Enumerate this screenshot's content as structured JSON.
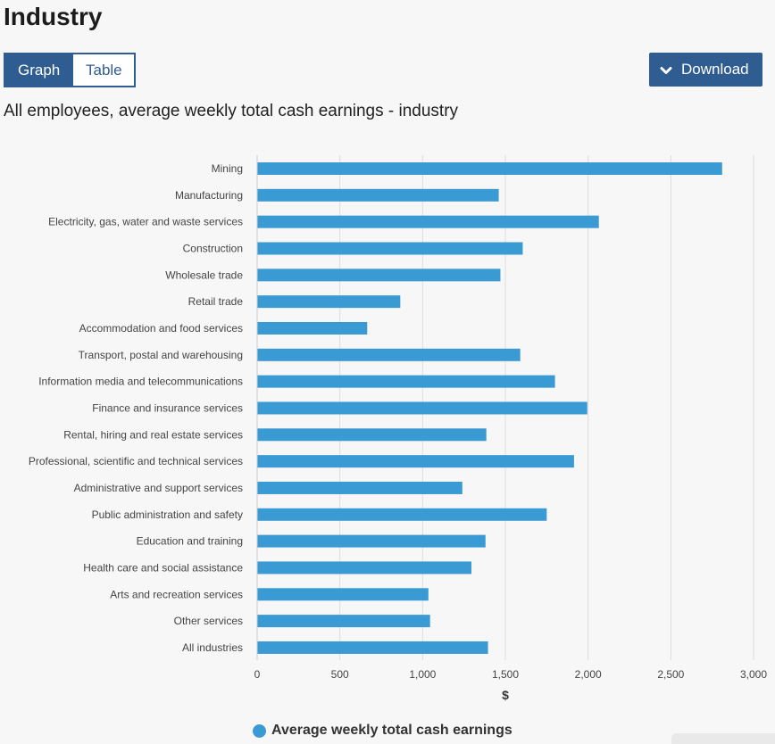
{
  "page": {
    "title": "Industry",
    "chart_heading": "All employees, average weekly total cash earnings - industry"
  },
  "toggle": {
    "graph_label": "Graph",
    "table_label": "Table",
    "selected": "Graph"
  },
  "download": {
    "label": "Download",
    "icon": "chevron-down-icon"
  },
  "colors": {
    "bar": "#3a9ad3",
    "primary": "#2f5d91",
    "grid": "#dddddd"
  },
  "legend": {
    "label": "Average weekly total cash earnings"
  },
  "chart_data": {
    "type": "bar",
    "orientation": "horizontal",
    "title": "All employees, average weekly total cash earnings - industry",
    "xlabel": "$",
    "ylabel": "",
    "xlim": [
      0,
      3000
    ],
    "xticks": [
      0,
      500,
      1000,
      1500,
      2000,
      2500,
      3000
    ],
    "xtick_labels": [
      "0",
      "500",
      "1,000",
      "1,500",
      "2,000",
      "2,500",
      "3,000"
    ],
    "grid": true,
    "legend_position": "bottom-center",
    "categories": [
      "Mining",
      "Manufacturing",
      "Electricity, gas, water and waste services",
      "Construction",
      "Wholesale trade",
      "Retail trade",
      "Accommodation and food services",
      "Transport, postal and warehousing",
      "Information media and telecommunications",
      "Finance and insurance services",
      "Rental, hiring and real estate services",
      "Professional, scientific and technical services",
      "Administrative and support services",
      "Public administration and safety",
      "Education and training",
      "Health care and social assistance",
      "Arts and recreation services",
      "Other services",
      "All industries"
    ],
    "series": [
      {
        "name": "Average weekly total cash earnings",
        "values": [
          2810,
          1460,
          2065,
          1605,
          1470,
          865,
          665,
          1590,
          1800,
          1995,
          1385,
          1915,
          1240,
          1750,
          1380,
          1295,
          1035,
          1045,
          1395
        ]
      }
    ]
  }
}
